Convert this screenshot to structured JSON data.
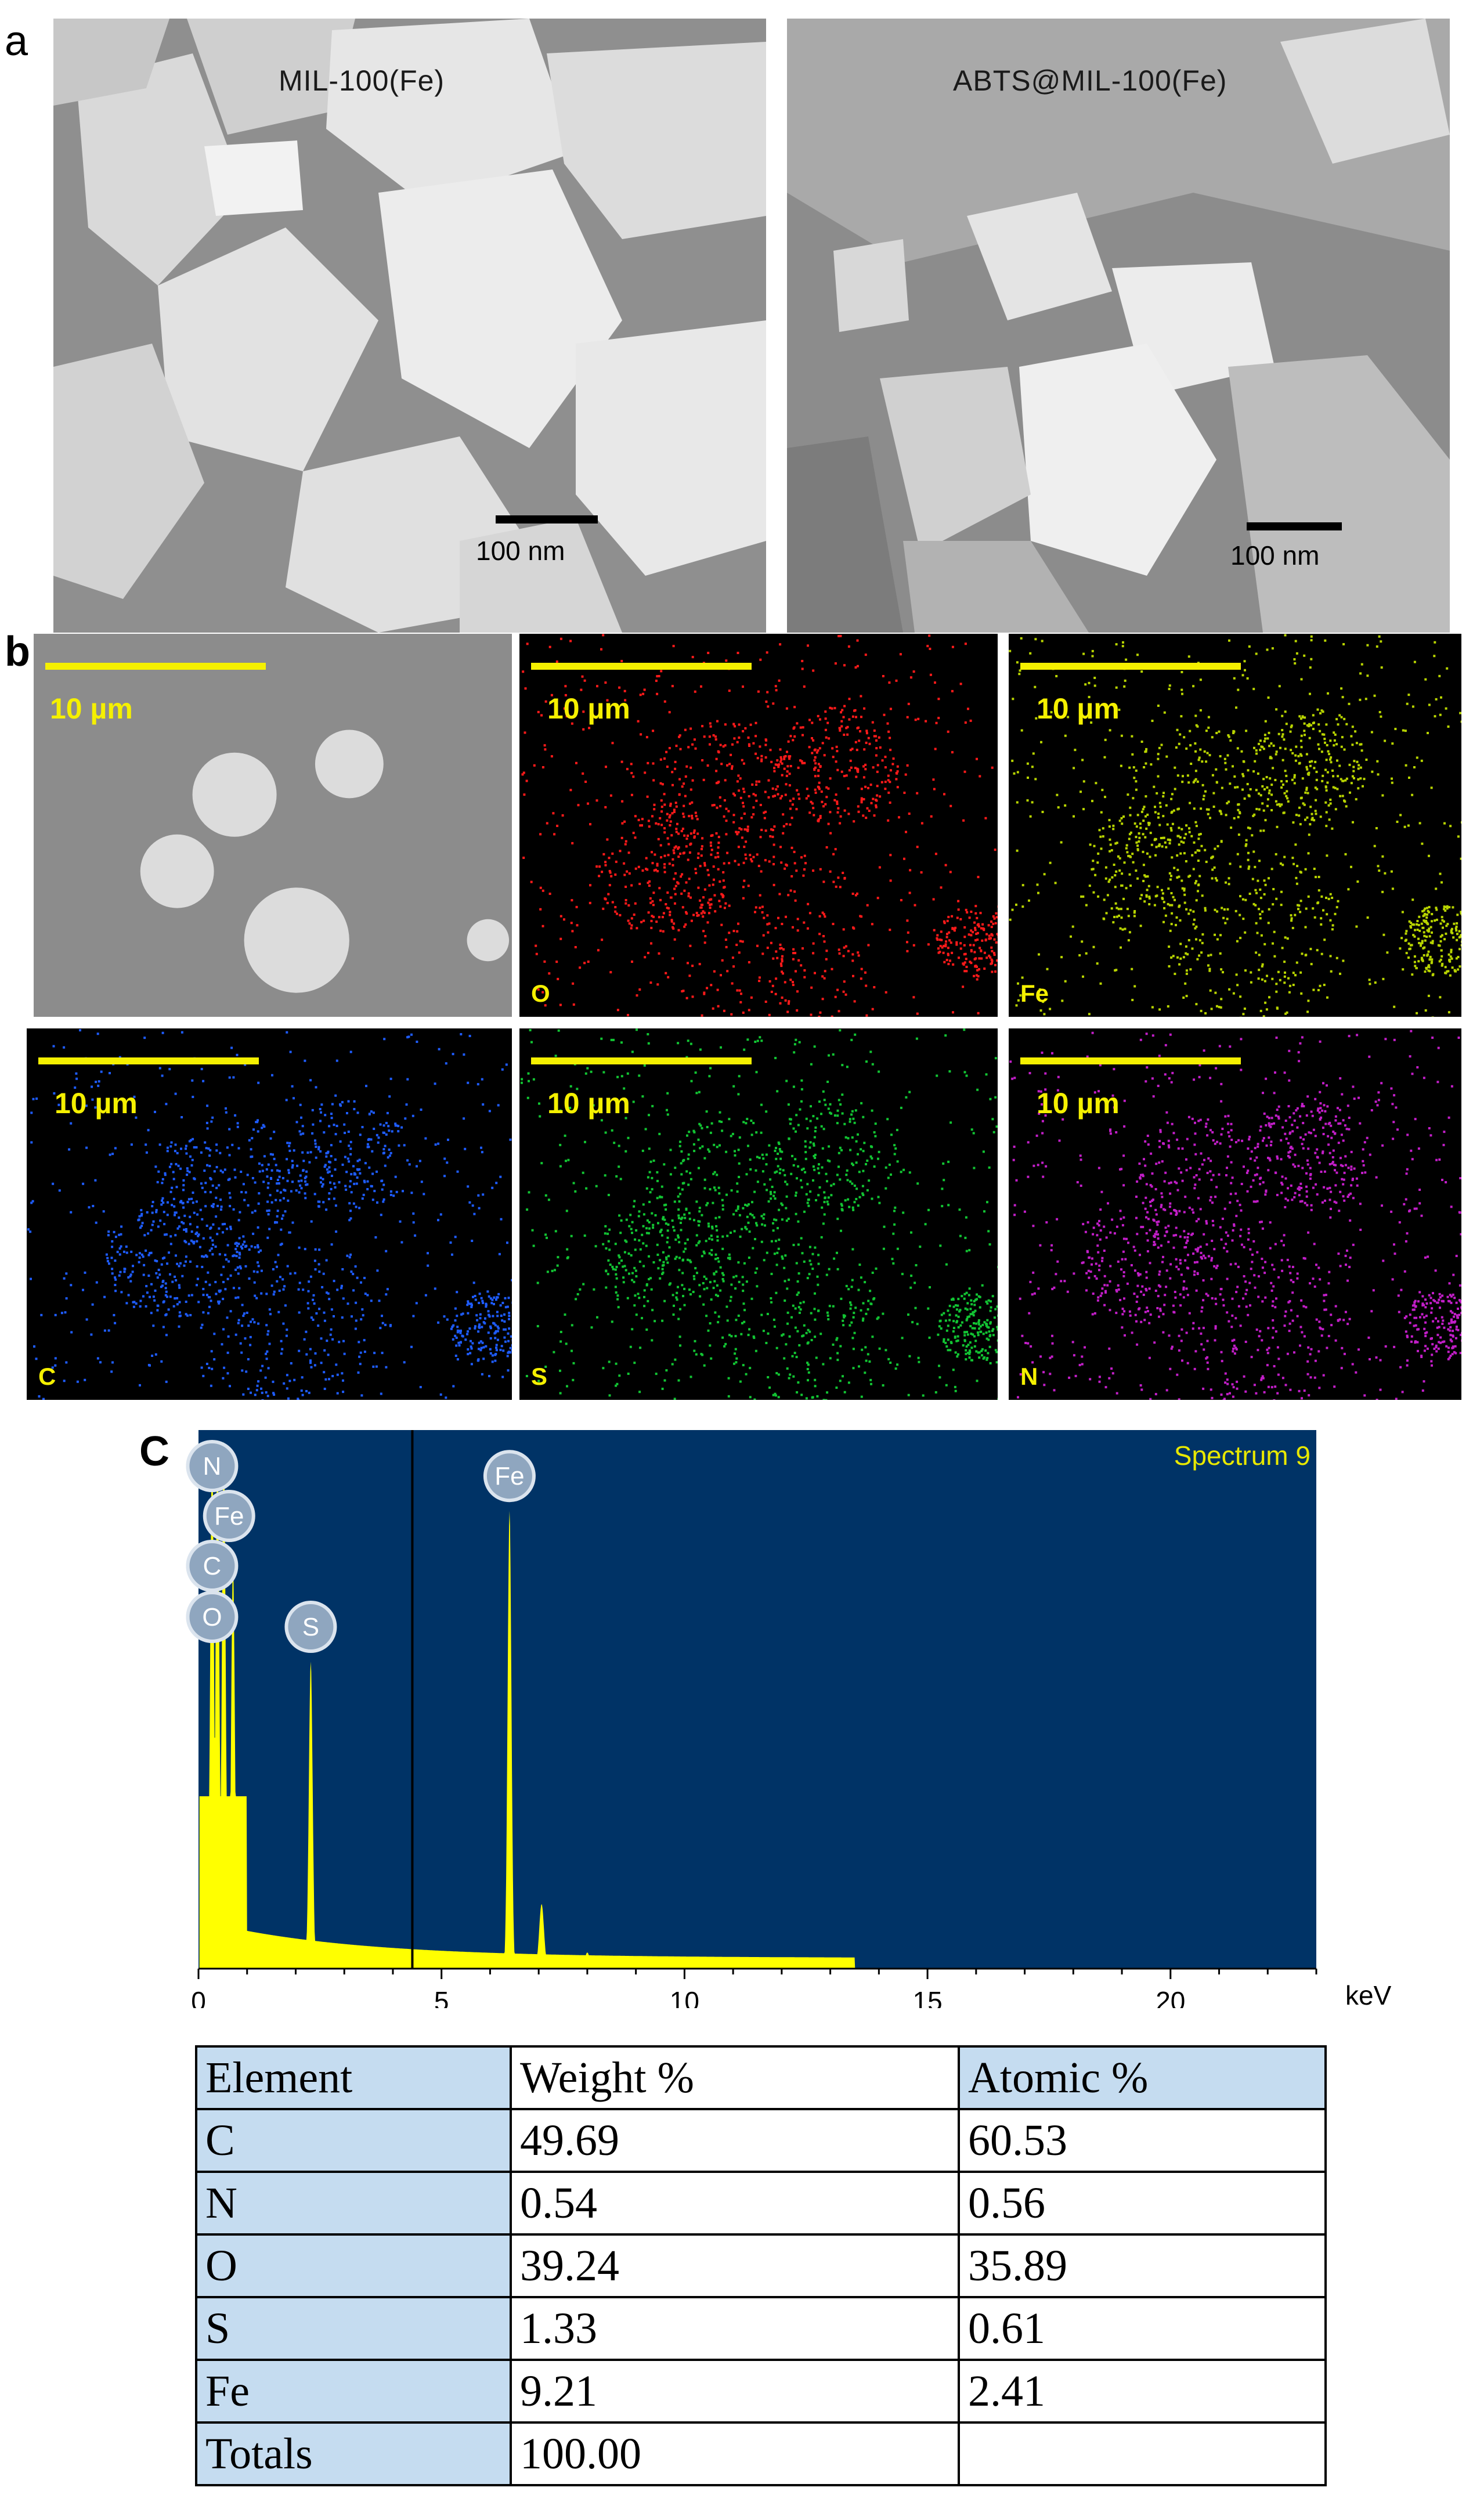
{
  "panels": {
    "a": {
      "letter": "a",
      "left": {
        "title": "MIL-100(Fe)",
        "scale": "100 nm"
      },
      "right": {
        "title": "ABTS@MIL-100(Fe)",
        "scale": "100 nm"
      }
    },
    "b": {
      "letter": "b",
      "maps": [
        {
          "scale": "10 µm",
          "element": "",
          "color": "#9a9a9a"
        },
        {
          "scale": "10 µm",
          "element": "O",
          "color": "#ff1a1a"
        },
        {
          "scale": "10 µm",
          "element": "Fe",
          "color": "#b8d400"
        },
        {
          "scale": "10 µm",
          "element": "C",
          "color": "#1e5cff"
        },
        {
          "scale": "10 µm",
          "element": "S",
          "color": "#12c433"
        },
        {
          "scale": "10 µm",
          "element": "N",
          "color": "#c21ec8"
        }
      ]
    },
    "c": {
      "letter": "C"
    }
  },
  "chart_data": {
    "type": "line",
    "title": "Spectrum 9",
    "xlabel": "keV",
    "xlim": [
      0,
      23
    ],
    "xticks": [
      "0",
      "5",
      "10",
      "15",
      "20"
    ],
    "background": "#003366",
    "trace_color": "#ffff00",
    "peaks": [
      {
        "label": "N",
        "x": 0.39
      },
      {
        "label": "Fe",
        "x": 0.71
      },
      {
        "label": "C",
        "x": 0.28
      },
      {
        "label": "O",
        "x": 0.52
      },
      {
        "label": "S",
        "x": 2.31
      },
      {
        "label": "Fe",
        "x": 6.4
      }
    ],
    "marker_line_x": 4.4
  },
  "table": {
    "headers": [
      "Element",
      "Weight %",
      "Atomic %"
    ],
    "rows": [
      [
        "C",
        "49.69",
        "60.53"
      ],
      [
        "N",
        "0.54",
        "0.56"
      ],
      [
        "O",
        "39.24",
        "35.89"
      ],
      [
        "S",
        "1.33",
        "0.61"
      ],
      [
        "Fe",
        "9.21",
        "2.41"
      ],
      [
        "Totals",
        "100.00",
        ""
      ]
    ]
  }
}
